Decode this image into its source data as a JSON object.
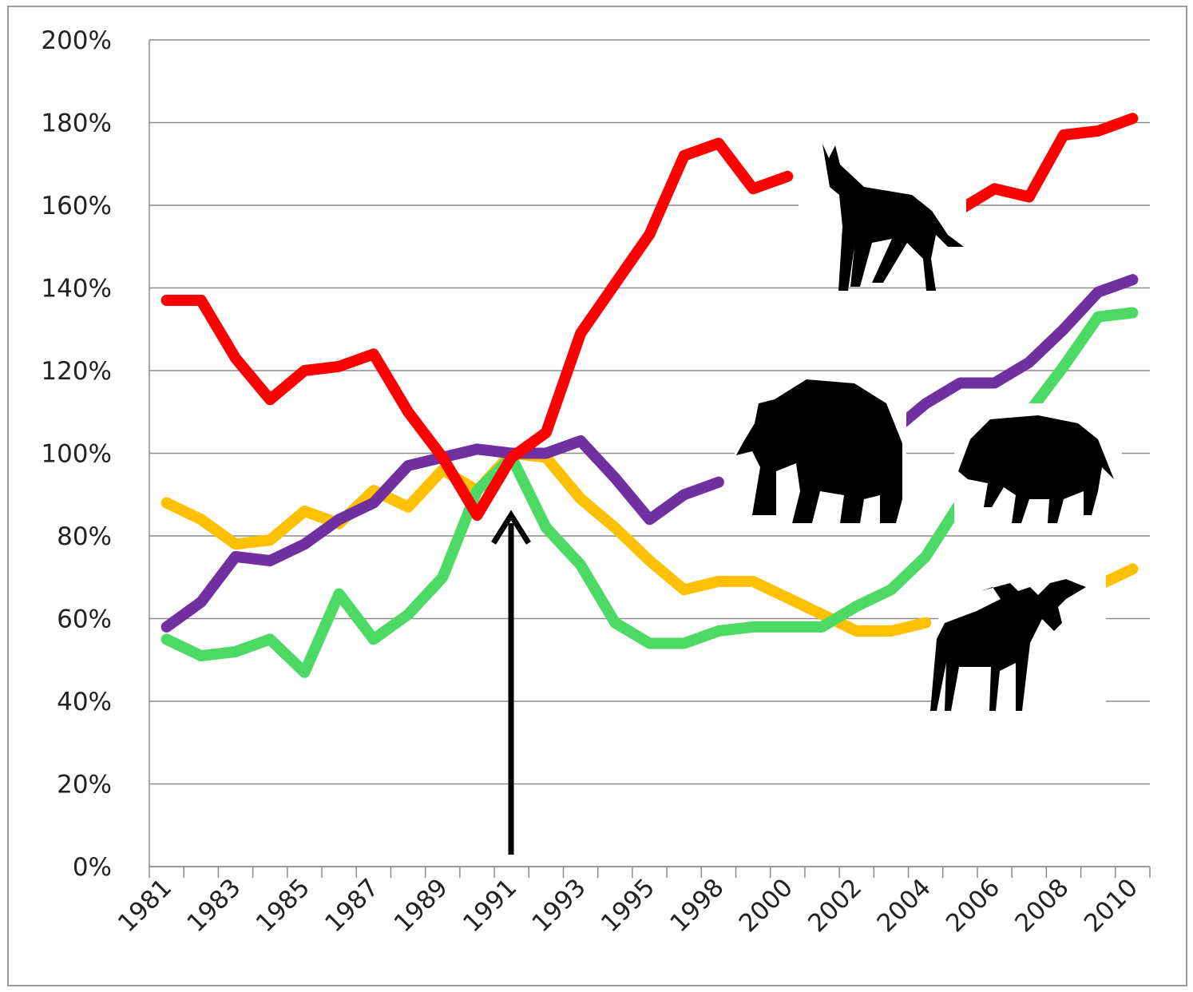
{
  "chart_data": {
    "type": "line",
    "categories": [
      "1981",
      null,
      "1983",
      null,
      "1985",
      null,
      "1987",
      null,
      "1989",
      null,
      "1991",
      null,
      "1993",
      null,
      "1995",
      null,
      "1998",
      null,
      "2000",
      null,
      "2002",
      null,
      "2004",
      null,
      "2006",
      null,
      "2008",
      null,
      "2010"
    ],
    "ylim": [
      0,
      200
    ],
    "yticks": [
      {
        "value": 0,
        "label": "0%"
      },
      {
        "value": 20,
        "label": "20%"
      },
      {
        "value": 40,
        "label": "40%"
      },
      {
        "value": 60,
        "label": "60%"
      },
      {
        "value": 80,
        "label": "80%"
      },
      {
        "value": 100,
        "label": "100%"
      },
      {
        "value": 120,
        "label": "120%"
      },
      {
        "value": 140,
        "label": "140%"
      },
      {
        "value": 160,
        "label": "160%"
      },
      {
        "value": 180,
        "label": "180%"
      },
      {
        "value": 200,
        "label": "200%"
      }
    ],
    "grid": true,
    "series": [
      {
        "color": "#ffc000",
        "values": [
          88,
          84,
          78,
          79,
          86,
          83,
          91,
          87,
          96,
          91,
          100,
          99,
          89,
          82,
          74,
          67,
          69,
          69,
          65,
          61,
          57,
          57,
          59,
          null,
          null,
          null,
          null,
          68,
          72
        ]
      },
      {
        "color": "#4cd964",
        "values": [
          55,
          51,
          52,
          55,
          47,
          66,
          55,
          61,
          70,
          91,
          99,
          82,
          73,
          59,
          54,
          54,
          57,
          58,
          58,
          58,
          63,
          67,
          75,
          88,
          null,
          110,
          121,
          133,
          134
        ]
      },
      {
        "color": "#7030a0",
        "values": [
          58,
          64,
          75,
          74,
          78,
          84,
          88,
          97,
          99,
          101,
          100,
          100,
          103,
          94,
          84,
          90,
          93,
          null,
          null,
          null,
          null,
          105,
          112,
          117,
          117,
          122,
          130,
          139,
          142
        ]
      },
      {
        "color": "#ff0000",
        "values": [
          137,
          137,
          123,
          113,
          120,
          121,
          124,
          110,
          99,
          85,
          99,
          105,
          129,
          141,
          153,
          172,
          175,
          164,
          167,
          null,
          null,
          null,
          null,
          159,
          164,
          162,
          177,
          178,
          181
        ]
      }
    ]
  }
}
